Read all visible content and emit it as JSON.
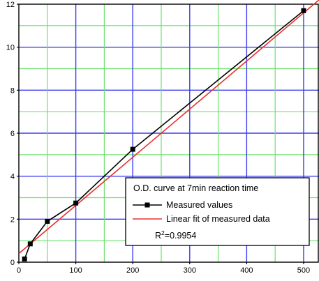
{
  "chart_data": {
    "type": "line",
    "title": "",
    "xlabel": "",
    "ylabel": "",
    "xlim": [
      0,
      527
    ],
    "ylim": [
      0,
      12
    ],
    "x_ticks": [
      "0",
      "100",
      "200",
      "300",
      "400",
      "500"
    ],
    "y_ticks": [
      "0",
      "2",
      "4",
      "6",
      "8",
      "10",
      "12"
    ],
    "x_tick_values": [
      0,
      100,
      200,
      300,
      400,
      500
    ],
    "y_tick_values": [
      0,
      2,
      4,
      6,
      8,
      10,
      12
    ],
    "x_grid_values": [
      0,
      50,
      100,
      150,
      200,
      250,
      300,
      350,
      400,
      450,
      500
    ],
    "grid": true,
    "grid_color_major": "#3c3cf0",
    "grid_color_minor": "#6ee06e",
    "legend_position": "bottom-right",
    "legend": {
      "title": "O.D. curve at 7min reaction time",
      "r_squared_prefix": "R",
      "r_squared_exponent": "2",
      "r_squared_value": "=0.9954"
    },
    "series": [
      {
        "name": "Measured values",
        "kind": "line-markers",
        "color": "#000000",
        "x": [
          10,
          20,
          50,
          100,
          200,
          500
        ],
        "y": [
          0.15,
          0.85,
          1.9,
          2.75,
          5.25,
          11.7
        ]
      },
      {
        "name": "Linear fit of measured data",
        "kind": "line",
        "color": "#e8302a",
        "x": [
          0,
          527
        ],
        "y": [
          0.4,
          12.2
        ]
      }
    ]
  }
}
